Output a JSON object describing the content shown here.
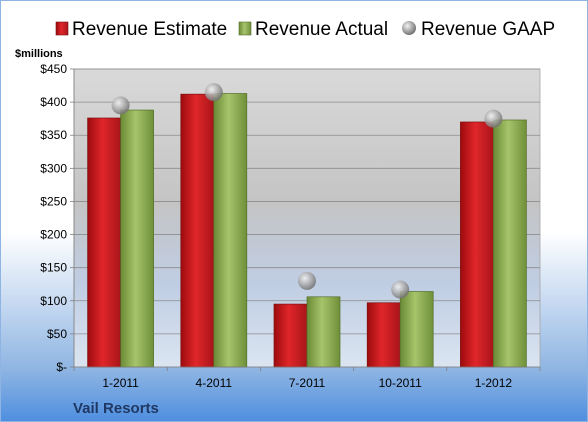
{
  "chart_data": {
    "type": "bar",
    "unit_label": "$millions",
    "categories": [
      "1-2011",
      "4-2011",
      "7-2011",
      "10-2011",
      "1-2012"
    ],
    "series": [
      {
        "name": "Revenue Estimate",
        "kind": "bar",
        "color": "#e0262a",
        "values": [
          376,
          412,
          95,
          97,
          370
        ]
      },
      {
        "name": "Revenue Actual",
        "kind": "bar",
        "color": "#9bbb59",
        "values": [
          388,
          413,
          106,
          114,
          373
        ]
      },
      {
        "name": "Revenue GAAP",
        "kind": "marker",
        "color": "#a6a6a6",
        "values": [
          395,
          415,
          130,
          117,
          375
        ]
      }
    ],
    "ylim": [
      0,
      450
    ],
    "yticks": [
      0,
      50,
      100,
      150,
      200,
      250,
      300,
      350,
      400,
      450
    ],
    "ytick_labels": [
      "$-",
      "$50",
      "$100",
      "$150",
      "$200",
      "$250",
      "$300",
      "$350",
      "$400",
      "$450"
    ],
    "grid": true,
    "legend_position": "top"
  },
  "footer": {
    "company": "Vail Resorts"
  }
}
